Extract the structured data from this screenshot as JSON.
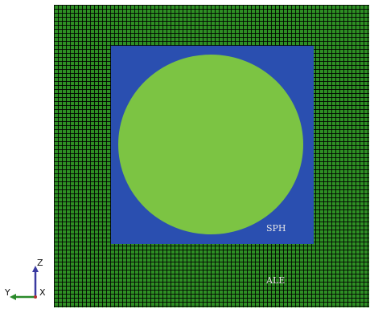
{
  "labels": {
    "sph": "SPH",
    "ale": "ALE"
  },
  "axes": {
    "z": "Z",
    "y": "Y",
    "x": "X"
  },
  "colors": {
    "ale_mesh": "#2e8f24",
    "sph_block": "#2a4fb0",
    "sph_particles": "#7cc443",
    "z_axis": "#3a3aa0",
    "y_axis": "#2a8a2a"
  }
}
